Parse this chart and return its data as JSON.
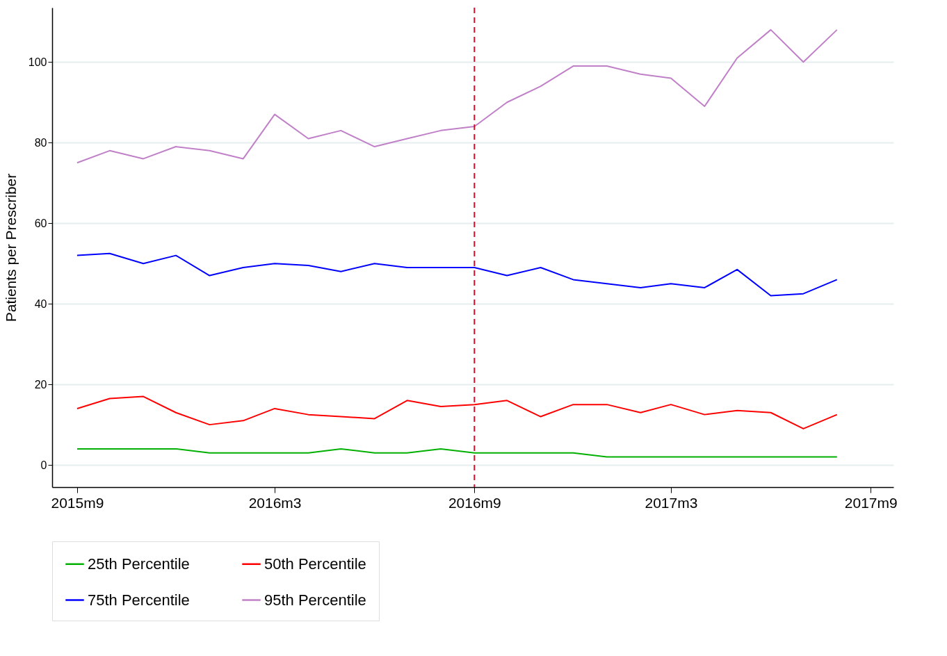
{
  "chart_data": {
    "type": "line",
    "ylabel": "Patients per Prescriber",
    "x": [
      "2015-09",
      "2015-10",
      "2015-11",
      "2015-12",
      "2016-01",
      "2016-02",
      "2016-03",
      "2016-04",
      "2016-05",
      "2016-06",
      "2016-07",
      "2016-08",
      "2016-09",
      "2016-10",
      "2016-11",
      "2016-12",
      "2017-01",
      "2017-02",
      "2017-03",
      "2017-04",
      "2017-05",
      "2017-06",
      "2017-07",
      "2017-08"
    ],
    "series": [
      {
        "name": "25th Percentile",
        "color": "#00b000",
        "values": [
          4,
          4,
          4,
          4,
          3,
          3,
          3,
          3,
          4,
          3,
          3,
          4,
          3,
          3,
          3,
          3,
          2,
          2,
          2,
          2,
          2,
          2,
          2,
          2
        ]
      },
      {
        "name": "50th Percentile",
        "color": "#ff0000",
        "values": [
          14,
          16.5,
          17,
          13,
          10,
          11,
          14,
          12.5,
          12,
          11.5,
          16,
          14.5,
          15,
          16,
          12,
          15,
          15,
          13,
          15,
          12.5,
          13.5,
          13,
          9,
          12.5
        ]
      },
      {
        "name": "75th Percentile",
        "color": "#0000ff",
        "values": [
          52,
          52.5,
          50,
          52,
          47,
          49,
          50,
          49.5,
          48,
          50,
          49,
          49,
          49,
          47,
          49,
          46,
          45,
          44,
          45,
          44,
          48.5,
          42,
          42.5,
          46
        ]
      },
      {
        "name": "95th Percentile",
        "color": "#c080c8",
        "values": [
          75,
          78,
          76,
          79,
          78,
          76,
          87,
          81,
          83,
          79,
          81,
          83,
          84,
          90,
          94,
          99,
          99,
          97,
          96,
          89,
          101,
          108,
          100,
          108
        ]
      }
    ],
    "xlim": [
      "2015-08-09",
      "2017-09-22"
    ],
    "xticks": [
      {
        "value": "2015-09",
        "label": "2015m9"
      },
      {
        "value": "2016-03",
        "label": "2016m3"
      },
      {
        "value": "2016-09",
        "label": "2016m9"
      },
      {
        "value": "2017-03",
        "label": "2017m3"
      },
      {
        "value": "2017-09",
        "label": "2017m9"
      }
    ],
    "ylim": [
      -5.5,
      113.5
    ],
    "yticks": [
      0,
      20,
      40,
      60,
      80,
      100
    ],
    "ref_lines": [
      {
        "axis": "x",
        "value": "2016-09",
        "color": "#c8102e",
        "line_style": "dashed"
      }
    ],
    "grid": "y",
    "legend": "bottom"
  }
}
